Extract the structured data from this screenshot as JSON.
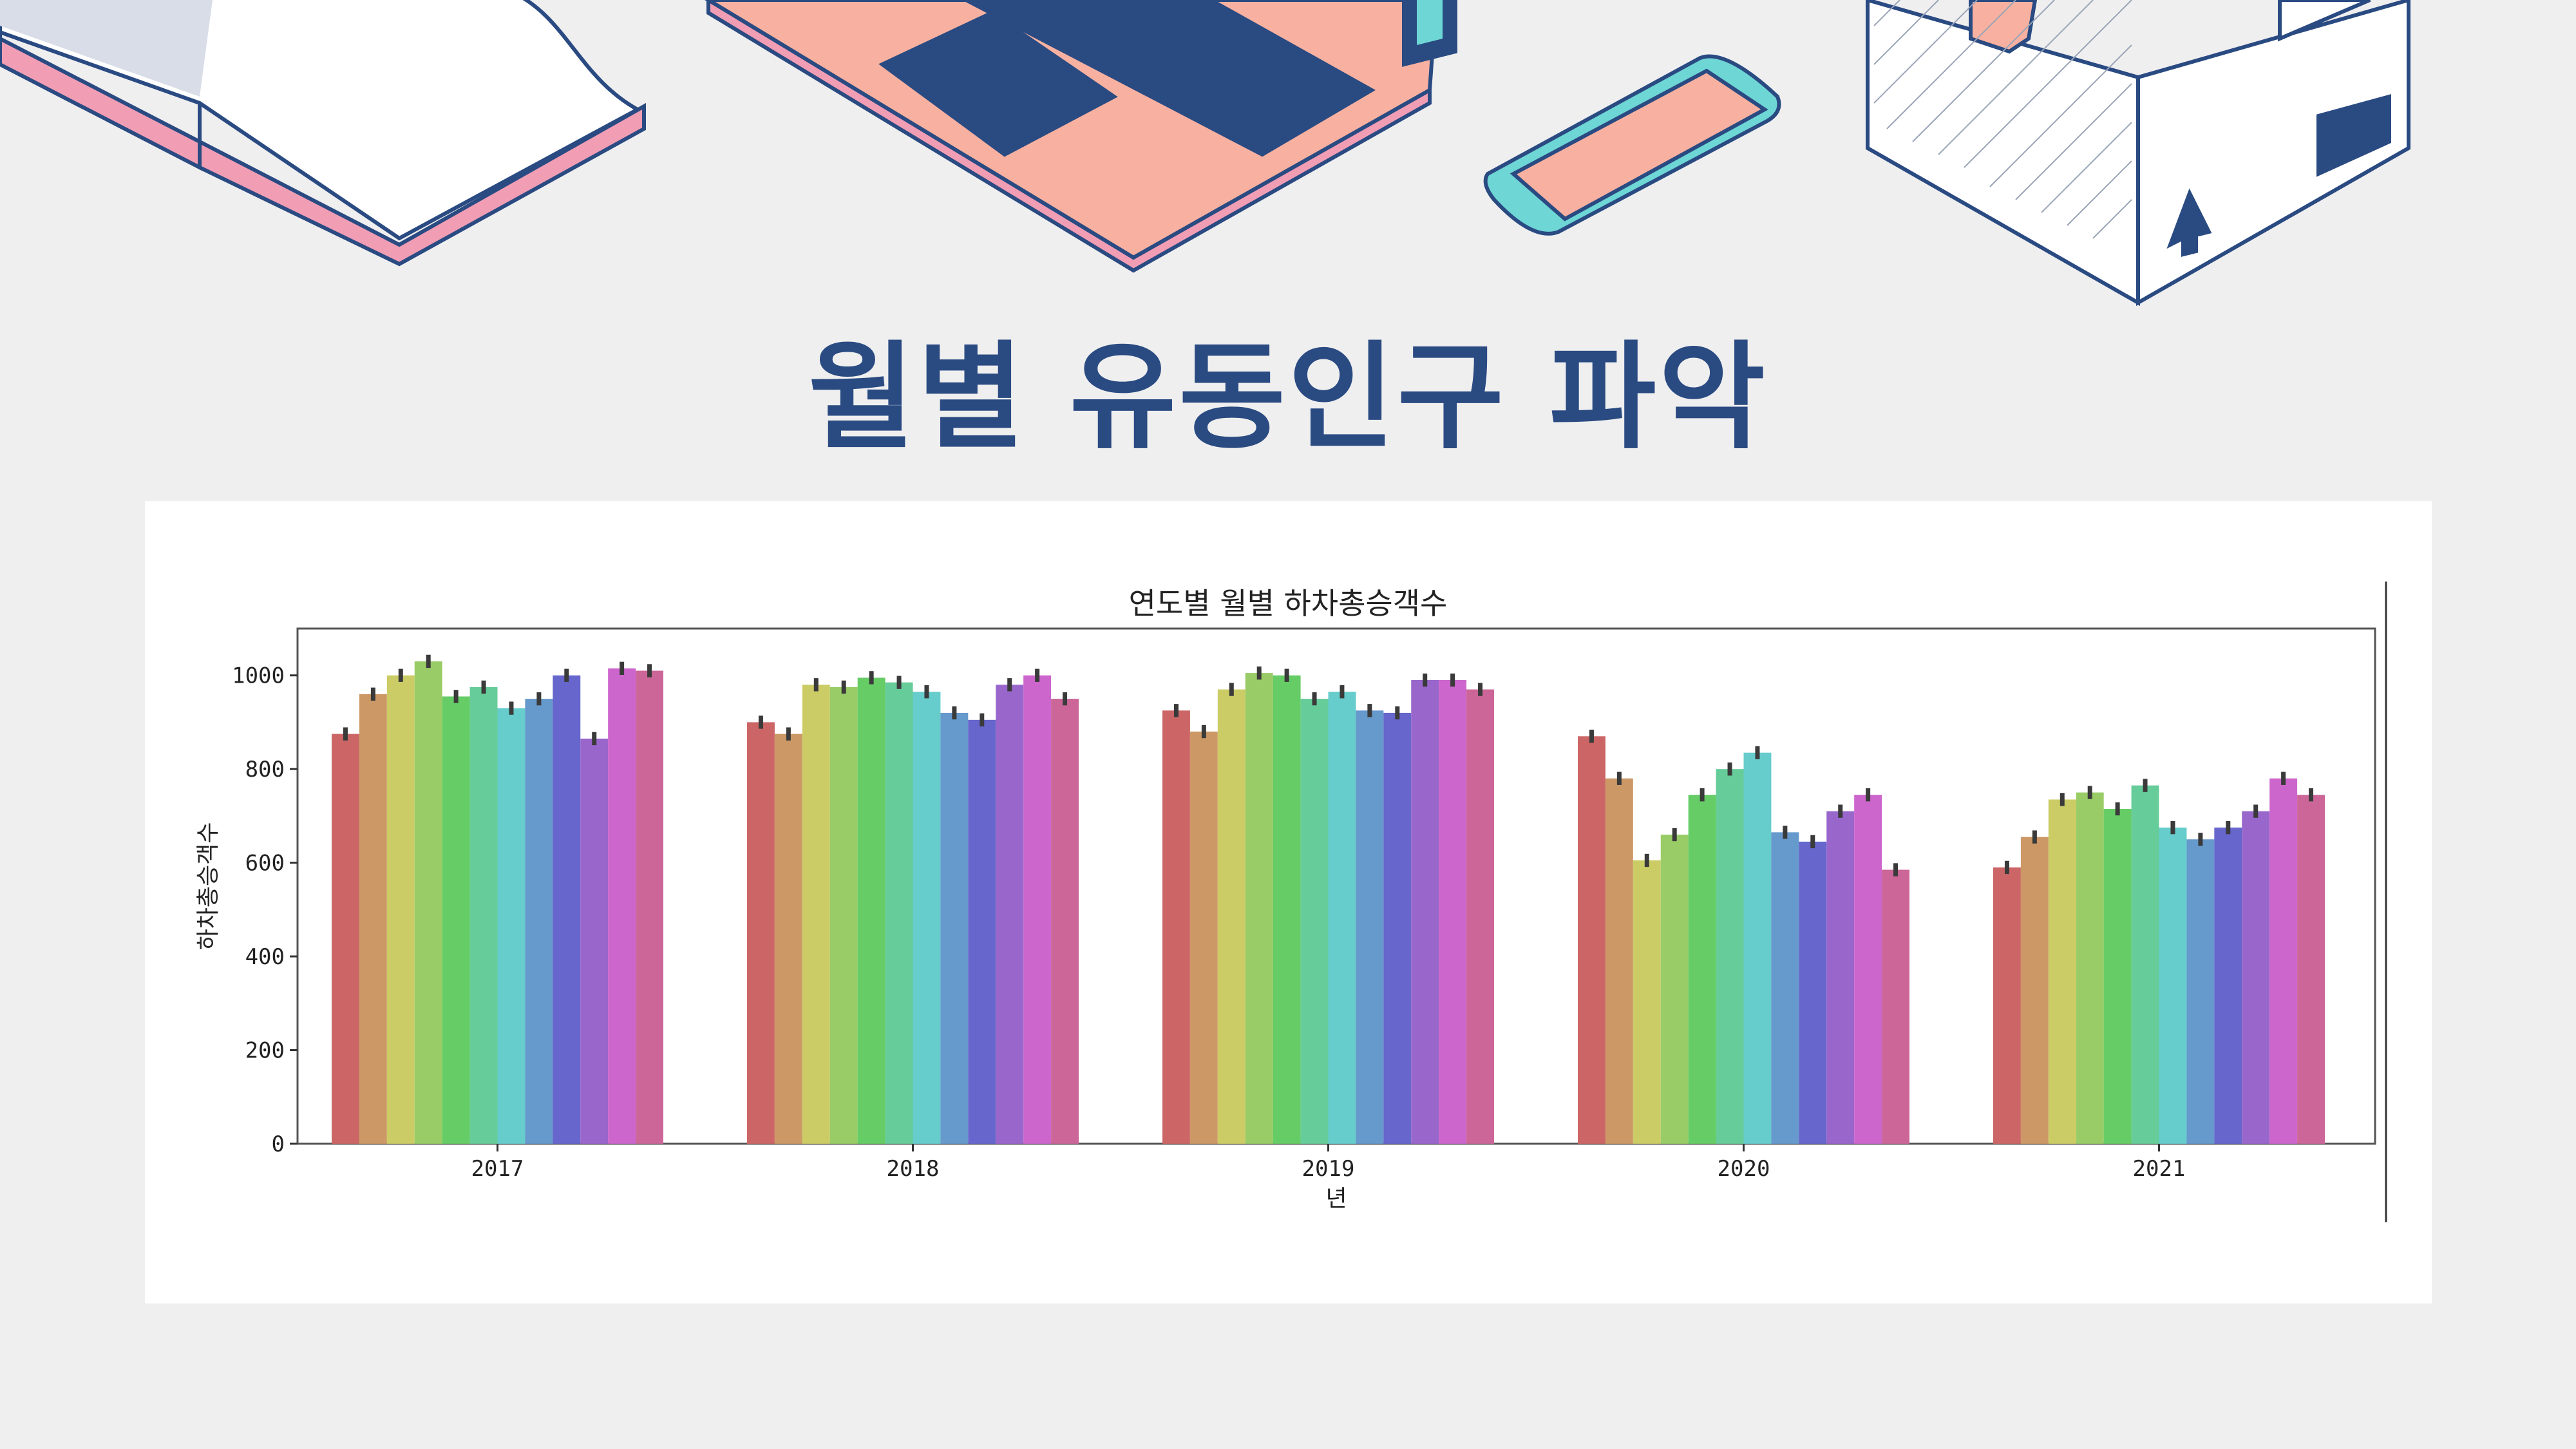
{
  "slide": {
    "title": "월별 유동인구 파악"
  },
  "chart_data": {
    "type": "bar",
    "title": "연도별 월별 하차총승객수",
    "xlabel": "년",
    "ylabel": "하차총승객수",
    "ylim": [
      0,
      1100
    ],
    "yticks": [
      0,
      200,
      400,
      600,
      800,
      1000
    ],
    "categories": [
      "2017",
      "2018",
      "2019",
      "2020",
      "2021"
    ],
    "legend": "none",
    "grid": false,
    "series": [
      {
        "color": "#cc6666",
        "values": [
          875,
          900,
          925,
          870,
          590
        ]
      },
      {
        "color": "#cc9966",
        "values": [
          960,
          875,
          880,
          780,
          655
        ]
      },
      {
        "color": "#cccc66",
        "values": [
          1000,
          980,
          970,
          605,
          735
        ]
      },
      {
        "color": "#99cc66",
        "values": [
          1030,
          975,
          1005,
          660,
          750
        ]
      },
      {
        "color": "#66cc66",
        "values": [
          955,
          995,
          1000,
          745,
          715
        ]
      },
      {
        "color": "#66cc99",
        "values": [
          975,
          985,
          950,
          800,
          765
        ]
      },
      {
        "color": "#66cccc",
        "values": [
          930,
          965,
          965,
          835,
          675
        ]
      },
      {
        "color": "#6699cc",
        "values": [
          950,
          920,
          925,
          665,
          650
        ]
      },
      {
        "color": "#6666cc",
        "values": [
          1000,
          905,
          920,
          645,
          675
        ]
      },
      {
        "color": "#9966cc",
        "values": [
          865,
          980,
          990,
          710,
          710
        ]
      },
      {
        "color": "#cc66cc",
        "values": [
          1015,
          1000,
          990,
          745,
          780
        ]
      },
      {
        "color": "#cc6699",
        "values": [
          1010,
          950,
          970,
          585,
          745
        ]
      }
    ]
  }
}
